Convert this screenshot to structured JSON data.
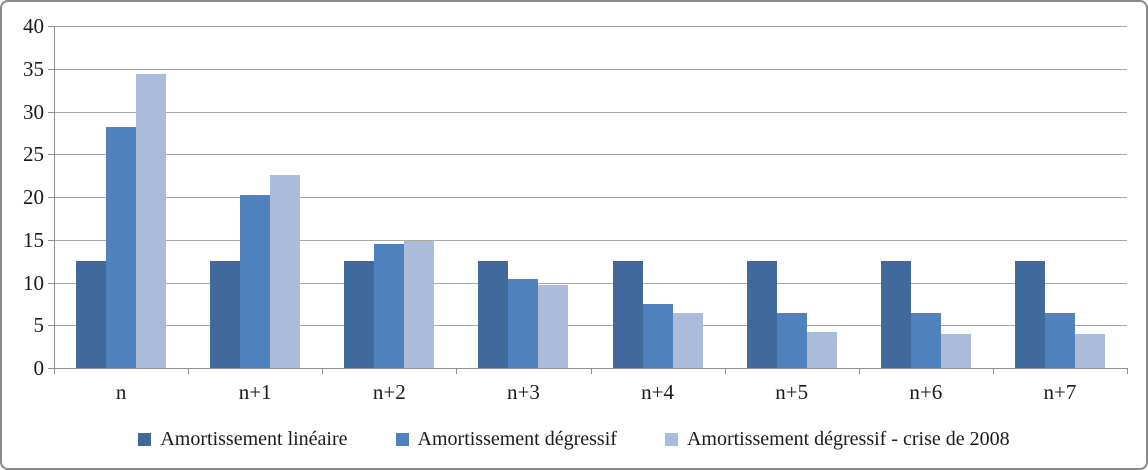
{
  "chart_data": {
    "type": "bar",
    "title": "",
    "xlabel": "",
    "ylabel": "",
    "categories": [
      "n",
      "n+1",
      "n+2",
      "n+3",
      "n+4",
      "n+5",
      "n+6",
      "n+7"
    ],
    "series": [
      {
        "name": "Amortissement linéaire",
        "color": "#40699C",
        "values": [
          12.5,
          12.5,
          12.5,
          12.5,
          12.5,
          12.5,
          12.5,
          12.5
        ]
      },
      {
        "name": "Amortissement dégressif",
        "color": "#4F81BD",
        "values": [
          28.13,
          20.21,
          14.53,
          10.45,
          7.51,
          6.4,
          6.4,
          6.4
        ]
      },
      {
        "name": "Amortissement dégressif - crise de 2008",
        "color": "#ABBCDA",
        "values": [
          34.38,
          22.56,
          14.8,
          9.72,
          6.38,
          4.18,
          4.0,
          4.0
        ]
      }
    ],
    "ylim": [
      0,
      40
    ],
    "yticks": [
      0,
      5,
      10,
      15,
      20,
      25,
      30,
      35,
      40
    ],
    "grid": true,
    "legend_position": "bottom"
  },
  "colors": {
    "frame_border": "#8A8A8A",
    "gridline": "#A6A6A6",
    "axis": "#8E8E8E",
    "text": "#1A1A1A",
    "background": "#FFFFFF"
  }
}
